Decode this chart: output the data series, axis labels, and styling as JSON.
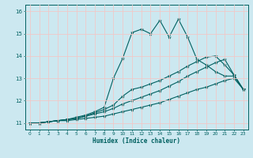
{
  "xlabel": "Humidex (Indice chaleur)",
  "background_color": "#cce8f0",
  "grid_color": "#f0c8c8",
  "line_color": "#006060",
  "xlim_min": -0.5,
  "xlim_max": 23.5,
  "ylim_min": 10.7,
  "ylim_max": 16.3,
  "yticks": [
    11,
    12,
    13,
    14,
    15,
    16
  ],
  "xticks": [
    0,
    1,
    2,
    3,
    4,
    5,
    6,
    7,
    8,
    9,
    10,
    11,
    12,
    13,
    14,
    15,
    16,
    17,
    18,
    19,
    20,
    21,
    22,
    23
  ],
  "line1_x": [
    0,
    1,
    2,
    3,
    4,
    5,
    6,
    7,
    8,
    9,
    10,
    11,
    12,
    13,
    14,
    15,
    16,
    17,
    18,
    19,
    20,
    21,
    22,
    23
  ],
  "line1_y": [
    11.0,
    11.0,
    11.05,
    11.1,
    11.1,
    11.15,
    11.2,
    11.25,
    11.3,
    11.4,
    11.5,
    11.6,
    11.7,
    11.8,
    11.9,
    12.05,
    12.2,
    12.35,
    12.5,
    12.6,
    12.75,
    12.9,
    13.0,
    12.5
  ],
  "line2_x": [
    0,
    1,
    2,
    3,
    4,
    5,
    6,
    7,
    8,
    9,
    10,
    11,
    12,
    13,
    14,
    15,
    16,
    17,
    18,
    19,
    20,
    21,
    22,
    23
  ],
  "line2_y": [
    11.0,
    11.0,
    11.05,
    11.1,
    11.15,
    11.2,
    11.3,
    11.4,
    11.5,
    11.65,
    11.85,
    12.0,
    12.15,
    12.3,
    12.45,
    12.65,
    12.85,
    13.1,
    13.3,
    13.5,
    13.7,
    13.85,
    13.15,
    12.5
  ],
  "line3_x": [
    0,
    1,
    2,
    3,
    4,
    5,
    6,
    7,
    8,
    9,
    10,
    11,
    12,
    13,
    14,
    15,
    16,
    17,
    18,
    19,
    20,
    21,
    22,
    23
  ],
  "line3_y": [
    11.0,
    11.0,
    11.05,
    11.1,
    11.15,
    11.2,
    11.3,
    11.45,
    11.6,
    11.8,
    12.2,
    12.5,
    12.6,
    12.75,
    12.9,
    13.1,
    13.3,
    13.55,
    13.75,
    13.95,
    14.0,
    13.6,
    13.15,
    12.5
  ],
  "line4_x": [
    0,
    1,
    2,
    3,
    4,
    5,
    6,
    7,
    8,
    9,
    10,
    11,
    12,
    13,
    14,
    15,
    16,
    17,
    18,
    19,
    20,
    21,
    22,
    23
  ],
  "line4_y": [
    11.0,
    11.0,
    11.05,
    11.1,
    11.15,
    11.25,
    11.35,
    11.5,
    11.7,
    13.0,
    13.9,
    15.05,
    15.2,
    15.0,
    15.6,
    14.85,
    15.65,
    14.85,
    13.85,
    13.6,
    13.3,
    13.1,
    13.1,
    12.5
  ]
}
